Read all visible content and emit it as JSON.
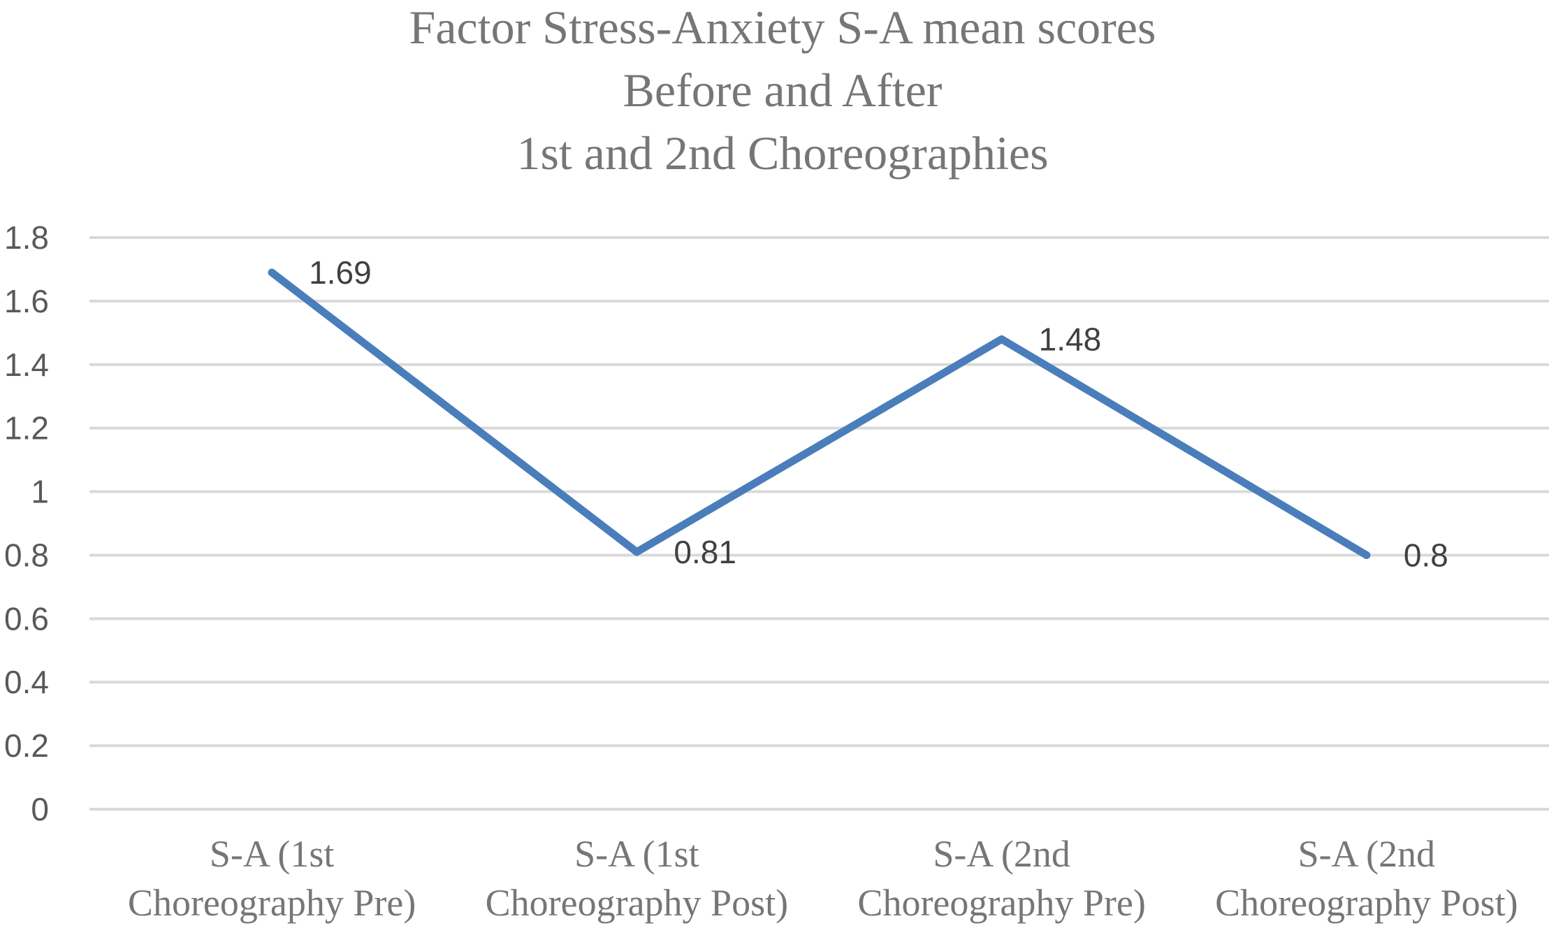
{
  "chart_data": {
    "type": "line",
    "title": [
      "Factor Stress-Anxiety S-A mean scores",
      "Before and After",
      "1st and 2nd Choreographies"
    ],
    "xlabel": "",
    "ylabel": "",
    "ylim": [
      0,
      1.8
    ],
    "yticks": [
      "0",
      "0.2",
      "0.4",
      "0.6",
      "0.8",
      "1",
      "1.2",
      "1.4",
      "1.6",
      "1.8"
    ],
    "grid": true,
    "legend": "none",
    "categories": [
      [
        "S-A (1st",
        "Choreography Pre)"
      ],
      [
        "S-A (1st",
        "Choreography Post)"
      ],
      [
        "S-A (2nd",
        "Choreography Pre)"
      ],
      [
        "S-A (2nd",
        "Choreography Post)"
      ]
    ],
    "series": [
      {
        "values": [
          1.69,
          0.81,
          1.48,
          0.8
        ],
        "labels": [
          "1.69",
          "0.81",
          "1.48",
          "0.8"
        ],
        "color": "#4a7ebb"
      }
    ]
  }
}
